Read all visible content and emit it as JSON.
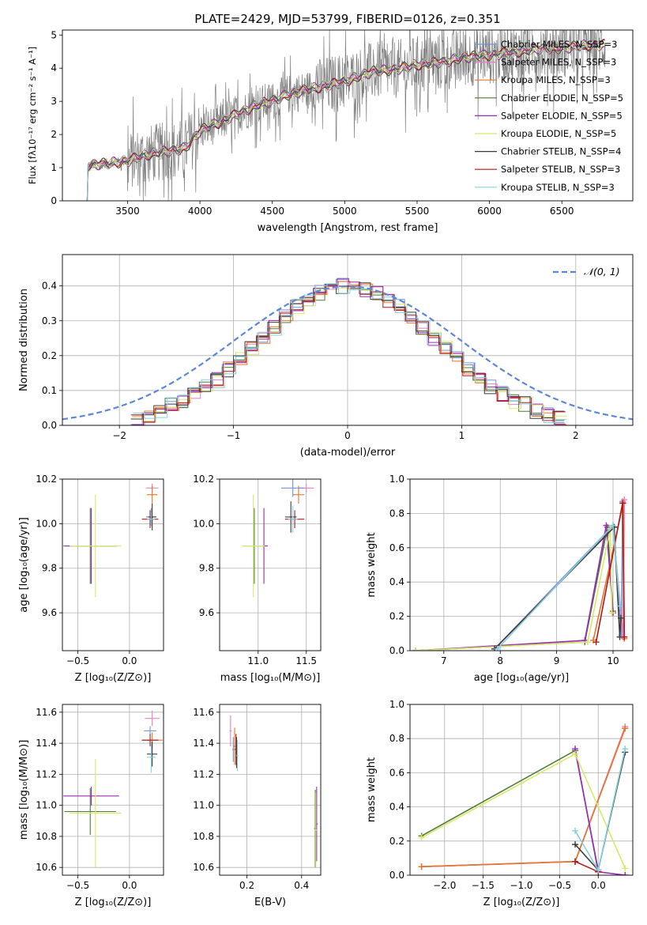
{
  "figure_title": "PLATE=2429, MJD=53799, FIBERID=0126, z=0.351",
  "colors": {
    "chabrier_miles": "#6f96d8",
    "salpeter_miles": "#e87fbf",
    "kroupa_miles": "#e8742a",
    "chabrier_elodie": "#4f7a3a",
    "salpeter_elodie": "#9a2ab8",
    "kroupa_elodie": "#d8e86a",
    "chabrier_stelib": "#3a3a3a",
    "salpeter_stelib": "#b01818",
    "kroupa_stelib": "#86d0e0",
    "data": "#808080",
    "normal": "#5b87d6",
    "grid": "#b0b0b0"
  },
  "chart_data": [
    {
      "id": "spectrum",
      "type": "line",
      "xlabel": "wavelength [Angstrom, rest frame]",
      "ylabel": "Flux [fλ10⁻¹⁷ erg cm⁻² s⁻¹ A⁻¹]",
      "xlim": [
        3050,
        6990
      ],
      "ylim": [
        0,
        5.15
      ],
      "xticks": [
        "3500",
        "4000",
        "4500",
        "5000",
        "5500",
        "6000",
        "6500"
      ],
      "xtick_values": [
        3500,
        4000,
        4500,
        5000,
        5500,
        6000,
        6500
      ],
      "yticks": [
        "0",
        "1",
        "2",
        "3",
        "4",
        "5"
      ],
      "ytick_values": [
        0,
        1,
        2,
        3,
        4,
        5
      ],
      "grid": false,
      "legend": "right",
      "legend_entries": [
        "Chabrier MILES, N_SSP=3",
        "Salpeter MILES, N_SSP=3",
        "Kroupa MILES, N_SSP=3",
        "Chabrier ELODIE, N_SSP=5",
        "Salpeter ELODIE, N_SSP=5",
        "Kroupa ELODIE, N_SSP=5",
        "Chabrier STELIB, N_SSP=4",
        "Salpeter STELIB, N_SSP=3",
        "Kroupa STELIB, N_SSP=3"
      ],
      "continuum": {
        "x": [
          3215,
          3300,
          3400,
          3500,
          3600,
          3700,
          3800,
          3900,
          4000,
          4100,
          4200,
          4300,
          4400,
          4500,
          4600,
          4700,
          4800,
          4900,
          5000,
          5100,
          5200,
          5300,
          5400,
          5500,
          5600,
          5700,
          5800,
          5900,
          6000,
          6100,
          6200,
          6300,
          6400,
          6500,
          6600,
          6700,
          6800
        ],
        "y": [
          1.05,
          1.1,
          1.15,
          1.2,
          1.35,
          1.45,
          1.5,
          1.6,
          2.1,
          2.3,
          2.5,
          2.7,
          2.9,
          3.0,
          3.2,
          3.3,
          3.4,
          3.5,
          3.6,
          3.75,
          3.9,
          3.95,
          4.0,
          4.1,
          4.15,
          4.2,
          4.3,
          4.35,
          4.4,
          4.45,
          4.5,
          4.55,
          4.6,
          4.6,
          4.65,
          4.7,
          4.7
        ]
      }
    },
    {
      "id": "residuals",
      "type": "line",
      "xlabel": "(data-model)/error",
      "ylabel": "Normed distribution",
      "xlim": [
        -2.5,
        2.5
      ],
      "ylim": [
        0,
        0.49
      ],
      "xticks": [
        "−2",
        "−1",
        "0",
        "1",
        "2"
      ],
      "xtick_values": [
        -2,
        -1,
        0,
        1,
        2
      ],
      "yticks": [
        "0.0",
        "0.1",
        "0.2",
        "0.3",
        "0.4"
      ],
      "ytick_values": [
        0,
        0.1,
        0.2,
        0.3,
        0.4
      ],
      "grid": true,
      "legend": "top-right",
      "normal_label": "𝒩(0, 1)",
      "bin_width": 0.1,
      "series_heights": [
        0.02,
        0.03,
        0.04,
        0.06,
        0.07,
        0.09,
        0.11,
        0.13,
        0.16,
        0.19,
        0.22,
        0.25,
        0.28,
        0.31,
        0.34,
        0.36,
        0.38,
        0.39,
        0.4,
        0.4,
        0.39,
        0.38,
        0.36,
        0.34,
        0.31,
        0.28,
        0.25,
        0.22,
        0.19,
        0.16,
        0.13,
        0.11,
        0.09,
        0.07,
        0.06,
        0.04,
        0.03,
        0.02
      ]
    },
    {
      "id": "age-z",
      "type": "scatter",
      "xlabel": "Z [log₁₀(Z/Z⊙)]",
      "ylabel": "age  [log₁₀(age/yr)]",
      "xlim": [
        -0.65,
        0.33
      ],
      "ylim": [
        9.43,
        10.2
      ],
      "xticks": [
        "−0.5",
        "0.0"
      ],
      "xtick_values": [
        -0.5,
        0
      ],
      "yticks": [
        "9.6",
        "9.8",
        "10.0",
        "10.2"
      ],
      "ytick_values": [
        9.6,
        9.8,
        10.0,
        10.2
      ],
      "grid": true,
      "points": [
        {
          "x": 0.22,
          "y": 10.16,
          "xerr": 0.06,
          "yerr": 0.02,
          "c": "salpeter_miles"
        },
        {
          "x": 0.22,
          "y": 10.13,
          "xerr": 0.05,
          "yerr": 0.04,
          "c": "kroupa_miles"
        },
        {
          "x": 0.21,
          "y": 10.03,
          "xerr": 0.05,
          "yerr": 0.04,
          "c": "chabrier_miles"
        },
        {
          "x": 0.2,
          "y": 10.02,
          "xerr": 0.08,
          "yerr": 0.04,
          "c": "salpeter_stelib"
        },
        {
          "x": 0.22,
          "y": 10.03,
          "xerr": 0.04,
          "yerr": 0.06,
          "c": "chabrier_stelib"
        },
        {
          "x": 0.21,
          "y": 10.02,
          "xerr": 0.04,
          "yerr": 0.03,
          "c": "kroupa_stelib"
        },
        {
          "x": -0.38,
          "y": 9.9,
          "xerr": 0.26,
          "yerr": 0.17,
          "c": "chabrier_elodie"
        },
        {
          "x": -0.37,
          "y": 9.9,
          "xerr": 0.25,
          "yerr": 0.17,
          "c": "salpeter_elodie"
        },
        {
          "x": -0.33,
          "y": 9.9,
          "xerr": 0.25,
          "yerr": 0.23,
          "c": "kroupa_elodie"
        }
      ]
    },
    {
      "id": "age-mass",
      "type": "scatter",
      "xlabel": "mass [log₁₀(M/M⊙)]",
      "ylabel": "",
      "xlim": [
        10.6,
        11.65
      ],
      "ylim": [
        9.43,
        10.2
      ],
      "xticks": [
        "11.0",
        "11.5"
      ],
      "xtick_values": [
        11.0,
        11.5
      ],
      "yticks": [
        "9.6",
        "9.8",
        "10.0",
        "10.2"
      ],
      "ytick_values": [
        9.6,
        9.8,
        10.0,
        10.2
      ],
      "grid": true,
      "points": [
        {
          "x": 11.5,
          "y": 10.16,
          "xerr": 0.08,
          "yerr": 0.02,
          "c": "salpeter_miles"
        },
        {
          "x": 11.42,
          "y": 10.13,
          "xerr": 0.06,
          "yerr": 0.04,
          "c": "kroupa_miles"
        },
        {
          "x": 11.36,
          "y": 10.16,
          "xerr": 0.12,
          "yerr": 0.04,
          "c": "chabrier_miles"
        },
        {
          "x": 11.38,
          "y": 10.02,
          "xerr": 0.1,
          "yerr": 0.04,
          "c": "salpeter_stelib"
        },
        {
          "x": 11.34,
          "y": 10.03,
          "xerr": 0.06,
          "yerr": 0.07,
          "c": "chabrier_stelib"
        },
        {
          "x": 11.36,
          "y": 10.02,
          "xerr": 0.05,
          "yerr": 0.06,
          "c": "kroupa_stelib"
        },
        {
          "x": 10.96,
          "y": 9.9,
          "xerr": 0.12,
          "yerr": 0.17,
          "c": "chabrier_elodie"
        },
        {
          "x": 11.06,
          "y": 9.9,
          "xerr": 0.04,
          "yerr": 0.17,
          "c": "salpeter_elodie"
        },
        {
          "x": 10.95,
          "y": 9.9,
          "xerr": 0.12,
          "yerr": 0.23,
          "c": "kroupa_elodie"
        }
      ]
    },
    {
      "id": "weight-age",
      "type": "line",
      "xlabel": "age  [log₁₀(age/yr)]",
      "ylabel": "mass weight",
      "xlim": [
        6.4,
        10.35
      ],
      "ylim": [
        0,
        1.0
      ],
      "xticks": [
        "7",
        "8",
        "9",
        "10"
      ],
      "xtick_values": [
        7,
        8,
        9,
        10
      ],
      "yticks": [
        "0.0",
        "0.2",
        "0.4",
        "0.6",
        "0.8",
        "1.0"
      ],
      "ytick_values": [
        0,
        0.2,
        0.4,
        0.6,
        0.8,
        1.0
      ],
      "grid": true,
      "series": [
        {
          "c": "chabrier_miles",
          "x": [
            7.9,
            10.0,
            10.15,
            10.17
          ],
          "y": [
            0.01,
            0.73,
            0.09,
            0.87
          ]
        },
        {
          "c": "salpeter_miles",
          "x": [
            7.9,
            10.0,
            10.18,
            10.2
          ],
          "y": [
            0.01,
            0.72,
            0.08,
            0.88
          ]
        },
        {
          "c": "kroupa_miles",
          "x": [
            9.65,
            10.18,
            10.2
          ],
          "y": [
            0.06,
            0.86,
            0.07
          ]
        },
        {
          "c": "chabrier_elodie",
          "x": [
            6.5,
            9.5,
            9.9,
            10.0
          ],
          "y": [
            0.0,
            0.05,
            0.72,
            0.23
          ]
        },
        {
          "c": "salpeter_elodie",
          "x": [
            6.5,
            9.5,
            9.88,
            10.0
          ],
          "y": [
            0.0,
            0.06,
            0.73,
            0.22
          ]
        },
        {
          "c": "kroupa_elodie",
          "x": [
            6.5,
            9.55,
            9.95,
            9.98
          ],
          "y": [
            0.0,
            0.05,
            0.71,
            0.22
          ]
        },
        {
          "c": "chabrier_stelib",
          "x": [
            7.9,
            10.02,
            10.12,
            10.14
          ],
          "y": [
            0.01,
            0.72,
            0.08,
            0.19
          ]
        },
        {
          "c": "salpeter_stelib",
          "x": [
            9.7,
            10.17,
            10.2
          ],
          "y": [
            0.05,
            0.86,
            0.08
          ]
        },
        {
          "c": "kroupa_stelib",
          "x": [
            7.95,
            10.0,
            10.12
          ],
          "y": [
            0.01,
            0.73,
            0.26
          ]
        }
      ]
    },
    {
      "id": "mass-z",
      "type": "scatter",
      "xlabel": "Z [log₁₀(Z/Z⊙)]",
      "ylabel": "mass [log₁₀(M/M⊙)]",
      "xlim": [
        -0.65,
        0.33
      ],
      "ylim": [
        10.55,
        11.65
      ],
      "xticks": [
        "−0.5",
        "0.0"
      ],
      "xtick_values": [
        -0.5,
        0
      ],
      "yticks": [
        "10.6",
        "10.8",
        "11.0",
        "11.2",
        "11.4",
        "11.6"
      ],
      "ytick_values": [
        10.6,
        10.8,
        11.0,
        11.2,
        11.4,
        11.6
      ],
      "grid": true,
      "points": [
        {
          "x": 0.22,
          "y": 11.56,
          "xerr": 0.07,
          "yerr": 0.05,
          "c": "salpeter_miles"
        },
        {
          "x": 0.22,
          "y": 11.42,
          "xerr": 0.1,
          "yerr": 0.05,
          "c": "kroupa_miles"
        },
        {
          "x": 0.2,
          "y": 11.48,
          "xerr": 0.06,
          "yerr": 0.03,
          "c": "chabrier_miles"
        },
        {
          "x": 0.2,
          "y": 11.42,
          "xerr": 0.08,
          "yerr": 0.04,
          "c": "salpeter_stelib"
        },
        {
          "x": 0.22,
          "y": 11.33,
          "xerr": 0.05,
          "yerr": 0.08,
          "c": "chabrier_stelib"
        },
        {
          "x": 0.21,
          "y": 11.31,
          "xerr": 0.04,
          "yerr": 0.1,
          "c": "kroupa_stelib"
        },
        {
          "x": -0.38,
          "y": 10.96,
          "xerr": 0.25,
          "yerr": 0.15,
          "c": "chabrier_elodie"
        },
        {
          "x": -0.37,
          "y": 11.06,
          "xerr": 0.27,
          "yerr": 0.06,
          "c": "salpeter_elodie"
        },
        {
          "x": -0.33,
          "y": 10.95,
          "xerr": 0.25,
          "yerr": 0.35,
          "c": "kroupa_elodie"
        }
      ]
    },
    {
      "id": "mass-ebv",
      "type": "scatter",
      "xlabel": "E(B-V)",
      "ylabel": "",
      "xlim": [
        0.1,
        0.47
      ],
      "ylim": [
        10.55,
        11.65
      ],
      "xticks": [
        "0.2",
        "0.4"
      ],
      "xtick_values": [
        0.2,
        0.4
      ],
      "yticks": [
        "10.6",
        "10.8",
        "11.0",
        "11.2",
        "11.4",
        "11.6"
      ],
      "ytick_values": [
        10.6,
        10.8,
        11.0,
        11.2,
        11.4,
        11.6
      ],
      "grid": true,
      "points": [
        {
          "x": 0.14,
          "y": 11.48,
          "xerr": 0.004,
          "yerr": 0.1,
          "c": "salpeter_miles"
        },
        {
          "x": 0.155,
          "y": 11.38,
          "xerr": 0.004,
          "yerr": 0.12,
          "c": "kroupa_miles"
        },
        {
          "x": 0.15,
          "y": 11.36,
          "xerr": 0.004,
          "yerr": 0.08,
          "c": "chabrier_miles"
        },
        {
          "x": 0.16,
          "y": 11.36,
          "xerr": 0.004,
          "yerr": 0.1,
          "c": "salpeter_stelib"
        },
        {
          "x": 0.162,
          "y": 11.34,
          "xerr": 0.004,
          "yerr": 0.1,
          "c": "chabrier_stelib"
        },
        {
          "x": 0.165,
          "y": 11.32,
          "xerr": 0.004,
          "yerr": 0.1,
          "c": "kroupa_stelib"
        },
        {
          "x": 0.45,
          "y": 10.85,
          "xerr": 0.004,
          "yerr": 0.25,
          "c": "chabrier_elodie"
        },
        {
          "x": 0.455,
          "y": 10.88,
          "xerr": 0.004,
          "yerr": 0.24,
          "c": "salpeter_elodie"
        },
        {
          "x": 0.452,
          "y": 10.84,
          "xerr": 0.004,
          "yerr": 0.24,
          "c": "kroupa_elodie"
        }
      ]
    },
    {
      "id": "weight-z",
      "type": "line",
      "xlabel": "Z [log₁₀(Z/Z⊙)]",
      "ylabel": "mass weight",
      "xlim": [
        -2.45,
        0.45
      ],
      "ylim": [
        0,
        1.0
      ],
      "xticks": [
        "−2.0",
        "−1.5",
        "−1.0",
        "−0.5",
        "0.0"
      ],
      "xtick_values": [
        -2.0,
        -1.5,
        -1.0,
        -0.5,
        0.0
      ],
      "yticks": [
        "0.0",
        "0.2",
        "0.4",
        "0.6",
        "0.8",
        "1.0"
      ],
      "ytick_values": [
        0,
        0.2,
        0.4,
        0.6,
        0.8,
        1.0
      ],
      "grid": true,
      "series": [
        {
          "c": "chabrier_miles",
          "x": [
            -2.3,
            -0.3,
            0.35
          ],
          "y": [
            0.05,
            0.08,
            0.86
          ]
        },
        {
          "c": "salpeter_miles",
          "x": [
            -2.3,
            -0.3,
            0.35
          ],
          "y": [
            0.05,
            0.08,
            0.87
          ]
        },
        {
          "c": "kroupa_miles",
          "x": [
            -2.3,
            -0.3,
            0.35
          ],
          "y": [
            0.05,
            0.08,
            0.86
          ]
        },
        {
          "c": "chabrier_elodie",
          "x": [
            -2.3,
            -0.3,
            0.0
          ],
          "y": [
            0.23,
            0.73,
            0.03
          ]
        },
        {
          "c": "salpeter_elodie",
          "x": [
            -0.3,
            0.0,
            0.35
          ],
          "y": [
            0.74,
            0.02,
            0.0
          ]
        },
        {
          "c": "kroupa_elodie",
          "x": [
            -2.3,
            -0.3,
            0.35
          ],
          "y": [
            0.22,
            0.71,
            0.04
          ]
        },
        {
          "c": "chabrier_stelib",
          "x": [
            -0.3,
            0.0,
            0.35
          ],
          "y": [
            0.18,
            0.03,
            0.72
          ]
        },
        {
          "c": "salpeter_stelib",
          "x": [
            -0.3,
            0.0
          ],
          "y": [
            0.08,
            0.02
          ]
        },
        {
          "c": "kroupa_stelib",
          "x": [
            -0.3,
            0.0,
            0.35
          ],
          "y": [
            0.26,
            0.03,
            0.74
          ]
        }
      ]
    }
  ]
}
